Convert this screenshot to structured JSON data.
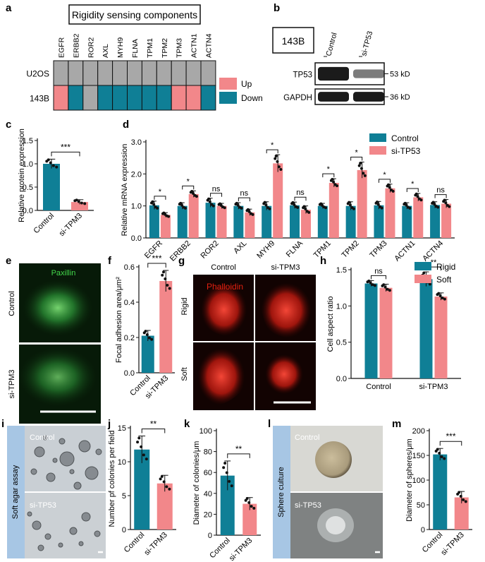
{
  "colors": {
    "teal": "#0f7f96",
    "pink": "#f2878a",
    "gray": "#a8a8a8",
    "dark": "#111111"
  },
  "panel_letters": [
    "a",
    "b",
    "c",
    "d",
    "e",
    "f",
    "g",
    "h",
    "i",
    "j",
    "k",
    "l",
    "m"
  ],
  "panel_a": {
    "title": "Rigidity sensing components",
    "genes": [
      "EGFR",
      "ERBB2",
      "ROR2",
      "AXL",
      "MYH9",
      "FLNA",
      "TPM1",
      "TPM2",
      "TPM3",
      "ACTN1",
      "ACTN4"
    ],
    "rows": [
      {
        "label": "U2OS",
        "states": [
          "none",
          "none",
          "none",
          "none",
          "none",
          "none",
          "none",
          "none",
          "none",
          "none",
          "none"
        ]
      },
      {
        "label": "143B",
        "states": [
          "up",
          "down",
          "none",
          "down",
          "down",
          "down",
          "down",
          "down",
          "up",
          "up",
          "down"
        ]
      }
    ],
    "legend": [
      {
        "label": "Up",
        "state": "up"
      },
      {
        "label": "Down",
        "state": "down"
      }
    ]
  },
  "panel_b": {
    "cell_line": "143B",
    "lanes": [
      "Control",
      "si-TP53"
    ],
    "bands": [
      {
        "label": "TP53",
        "size": "53 kD",
        "intensity": [
          1.0,
          0.35
        ]
      },
      {
        "label": "GAPDH",
        "size": "36 kD",
        "intensity": [
          1.0,
          1.0
        ]
      }
    ]
  },
  "panel_c": {
    "ylabel": "Relative protein expression",
    "categories": [
      "Control",
      "si-TPM3"
    ],
    "values": [
      1.0,
      0.18
    ],
    "errors": [
      0.1,
      0.05
    ],
    "ylim": [
      0,
      1.5
    ],
    "ticks": [
      0.0,
      0.5,
      1.0,
      1.5
    ],
    "sig": "***"
  },
  "panel_d": {
    "ylabel": "Relative mRNA expression",
    "ylim": [
      0,
      3
    ],
    "ticks": [
      0.0,
      1.0,
      2.0,
      3.0
    ],
    "categories": [
      "EGFR",
      "ERBB2",
      "ROR2",
      "AXL",
      "MYH9",
      "FLNA",
      "TPM1",
      "TPM2",
      "TPM3",
      "ACTN1",
      "ACTN4"
    ],
    "series": [
      {
        "name": "Control",
        "values": [
          1.02,
          1.0,
          1.1,
          1.0,
          1.0,
          1.02,
          1.0,
          1.0,
          1.02,
          1.0,
          1.03
        ],
        "errors": [
          0.13,
          0.1,
          0.14,
          0.1,
          0.13,
          0.1,
          0.08,
          0.13,
          0.12,
          0.1,
          0.1
        ]
      },
      {
        "name": "si-TP53",
        "values": [
          0.72,
          1.37,
          1.0,
          0.8,
          2.33,
          0.88,
          1.72,
          2.12,
          1.55,
          1.27,
          1.07
        ],
        "errors": [
          0.07,
          0.1,
          0.08,
          0.1,
          0.27,
          0.12,
          0.13,
          0.25,
          0.13,
          0.12,
          0.13
        ]
      }
    ],
    "sig": [
      "*",
      "*",
      "ns",
      "ns",
      "*",
      "ns",
      "*",
      "*",
      "*",
      "*",
      "ns"
    ]
  },
  "panel_e": {
    "stain": "Paxillin",
    "rows": [
      "Control",
      "si-TPM3"
    ]
  },
  "panel_f": {
    "ylabel": "Focal adhesion area/μm²",
    "categories": [
      "Control",
      "si-TPM3"
    ],
    "values": [
      0.21,
      0.52
    ],
    "errors": [
      0.03,
      0.06
    ],
    "ylim": [
      0,
      0.6
    ],
    "ticks": [
      0.0,
      0.2,
      0.4,
      0.6
    ],
    "sig": "***"
  },
  "panel_g": {
    "stain": "Phalloidin",
    "cols": [
      "Control",
      "si-TPM3"
    ],
    "rows": [
      "Rigid",
      "Soft"
    ]
  },
  "panel_h": {
    "ylabel": "Cell aspect ratio",
    "categories": [
      "Control",
      "si-TPM3"
    ],
    "series": [
      {
        "name": "Rigid",
        "values": [
          1.31,
          1.37
        ],
        "errors": [
          0.04,
          0.1
        ]
      },
      {
        "name": "Soft",
        "values": [
          1.25,
          1.13
        ],
        "errors": [
          0.05,
          0.05
        ]
      }
    ],
    "ylim": [
      0,
      1.5
    ],
    "ticks": [
      0.0,
      0.5,
      1.0,
      1.5
    ],
    "sig": [
      "ns",
      "**"
    ]
  },
  "panel_i": {
    "side_label": "Soft agar assay",
    "rows": [
      "Control",
      "si-TP53"
    ]
  },
  "panel_j": {
    "ylabel": "Number pf colonies per field",
    "categories": [
      "Control",
      "si-TPM3"
    ],
    "values": [
      11.8,
      6.8
    ],
    "errors": [
      2.0,
      1.2
    ],
    "ylim": [
      0,
      15
    ],
    "ticks": [
      0,
      5,
      10,
      15
    ],
    "sig": "**"
  },
  "panel_k": {
    "ylabel": "Diameter of colonies/μm",
    "categories": [
      "Control",
      "si-TPM3"
    ],
    "values": [
      57,
      30
    ],
    "errors": [
      14,
      6
    ],
    "ylim": [
      0,
      100
    ],
    "ticks": [
      0,
      20,
      40,
      60,
      80,
      100
    ],
    "sig": "**"
  },
  "panel_l": {
    "side_label": "Sphere culture",
    "rows": [
      "Control",
      "si-TP53"
    ]
  },
  "panel_m": {
    "ylabel": "Diameter of spheres/μm",
    "categories": [
      "Control",
      "si-TPM3"
    ],
    "values": [
      152,
      65
    ],
    "errors": [
      12,
      12
    ],
    "ylim": [
      0,
      200
    ],
    "ticks": [
      0,
      50,
      100,
      150,
      200
    ],
    "sig": "***"
  }
}
